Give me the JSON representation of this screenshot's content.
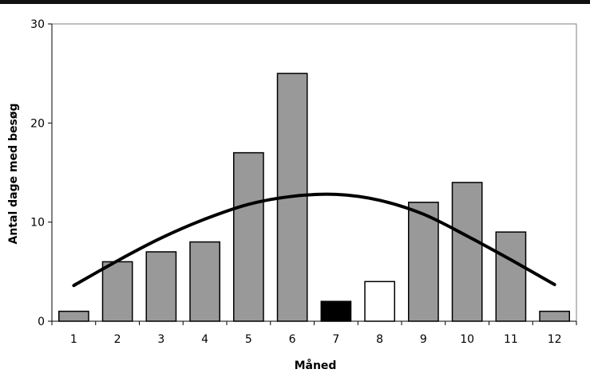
{
  "chart_data": {
    "type": "bar",
    "title": "",
    "xlabel": "Måned",
    "ylabel": "Antal dage med besøg",
    "categories": [
      "1",
      "2",
      "3",
      "4",
      "5",
      "6",
      "7",
      "8",
      "9",
      "10",
      "11",
      "12"
    ],
    "values": [
      1,
      6,
      7,
      8,
      17,
      25,
      2,
      4,
      12,
      14,
      9,
      1
    ],
    "bar_colors": [
      "#999999",
      "#999999",
      "#999999",
      "#999999",
      "#999999",
      "#999999",
      "#000000",
      "#ffffff",
      "#999999",
      "#999999",
      "#999999",
      "#999999"
    ],
    "ylim": [
      0,
      30
    ],
    "yticks": [
      0,
      10,
      20,
      30
    ],
    "grid": false,
    "legend": "none",
    "series": [
      {
        "type": "line",
        "x": [
          1,
          2,
          3,
          4,
          5,
          6,
          7,
          8,
          9,
          10,
          11,
          12
        ],
        "values": [
          3.6,
          6.1,
          8.4,
          10.3,
          11.8,
          12.6,
          12.8,
          12.2,
          10.8,
          8.6,
          6.2,
          3.7
        ]
      }
    ]
  }
}
